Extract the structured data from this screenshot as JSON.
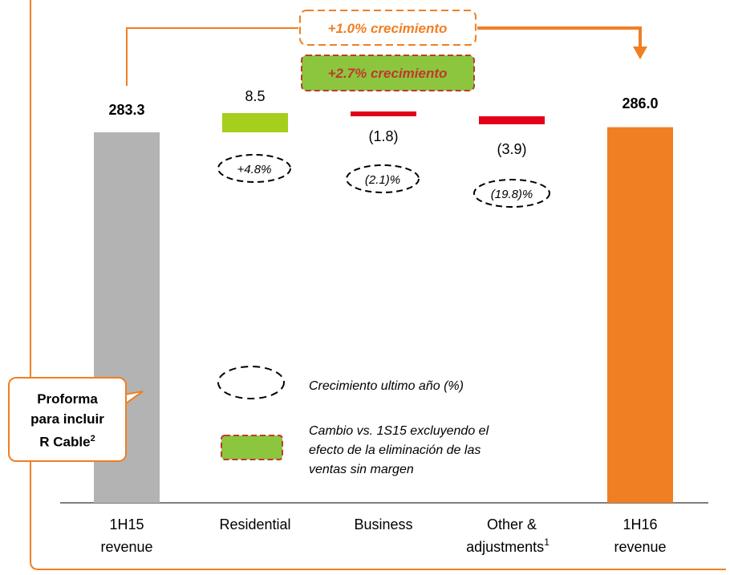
{
  "chart_data": {
    "type": "waterfall",
    "categories": [
      {
        "line1": "1H15",
        "line2": "revenue"
      },
      {
        "line1": "Residential",
        "line2": ""
      },
      {
        "line1": "Business",
        "line2": ""
      },
      {
        "line1": "Other &",
        "line2": "adjustments",
        "sup": "1"
      },
      {
        "line1": "1H16",
        "line2": "revenue"
      }
    ],
    "bars": [
      {
        "kind": "total",
        "value": 283.3,
        "label": "283.3",
        "color": "#b3b3b3"
      },
      {
        "kind": "delta",
        "value": 8.5,
        "label": "8.5",
        "color": "#a6ce1c",
        "growth": "+4.8%"
      },
      {
        "kind": "delta",
        "value": -1.8,
        "label": "(1.8)",
        "color": "#e2001a",
        "growth": "(2.1)%"
      },
      {
        "kind": "delta",
        "value": -3.9,
        "label": "(3.9)",
        "color": "#e2001a",
        "growth": "(19.8)%"
      },
      {
        "kind": "total",
        "value": 286.0,
        "label": "286.0",
        "color": "#f07f23"
      }
    ]
  },
  "annotations": {
    "growth_total": "+1.0% crecimiento",
    "growth_excl": "+2.7% crecimiento",
    "accent_color": "#f07f23",
    "green_color": "#8cc63f"
  },
  "legend": {
    "growth_label": "Crecimiento ultimo año (%)",
    "excl_line1": "Cambio vs. 1S15 excluyendo  el",
    "excl_line2": "efecto de la eliminación de las",
    "excl_line3": "ventas sin margen"
  },
  "callout": {
    "line1": "Proforma",
    "line2": "para incluir",
    "line3": "R Cable",
    "sup": "2"
  }
}
